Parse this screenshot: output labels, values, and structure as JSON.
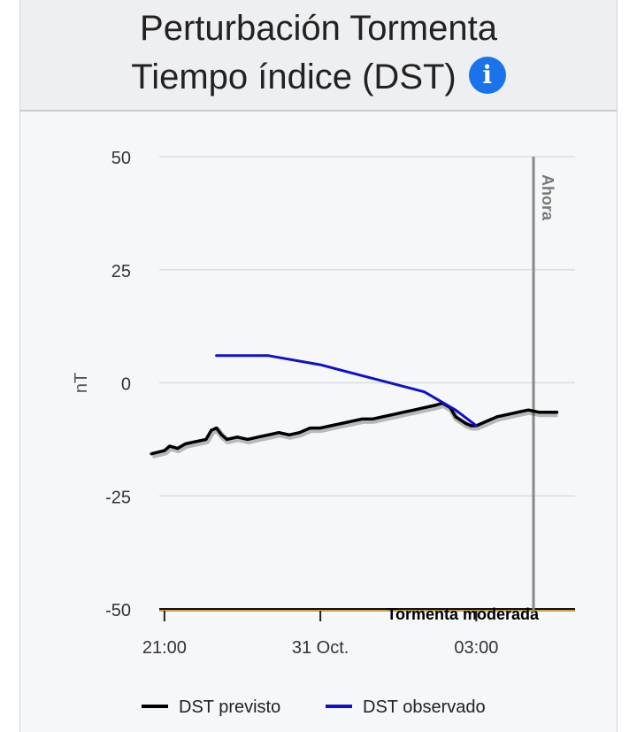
{
  "title": {
    "line1": "Perturbación Tormenta",
    "line2": "Tiempo índice (DST)",
    "info_icon": "info-icon"
  },
  "colors": {
    "forecast": "#000000",
    "observed": "#1010cc",
    "now_line": "#888888",
    "threshold": "#b5891e",
    "info": "#1a73e8"
  },
  "chart_data": {
    "type": "line",
    "title": "Perturbación Tormenta Tiempo índice (DST)",
    "ylabel": "nT",
    "xlabel": "",
    "ylim": [
      -50,
      50
    ],
    "yticks": [
      50,
      25,
      0,
      -25,
      -50
    ],
    "ytick_labels": [
      "50",
      "25",
      "0",
      "-25",
      "-50"
    ],
    "xlim": [
      -0.1,
      7.9
    ],
    "xticks": [
      0,
      3,
      6
    ],
    "xtick_labels": [
      "21:00",
      "31 Oct.",
      "03:00"
    ],
    "now": {
      "x": 7.1,
      "label": "Ahora"
    },
    "threshold": {
      "y": -50,
      "label": "Tormenta moderada"
    },
    "grid": true,
    "legend_position": "bottom",
    "series": [
      {
        "name": "DST previsto",
        "x": [
          -0.25,
          0.0,
          0.1,
          0.25,
          0.4,
          0.6,
          0.8,
          0.9,
          1.0,
          1.1,
          1.2,
          1.4,
          1.6,
          1.8,
          2.0,
          2.2,
          2.4,
          2.6,
          2.8,
          3.0,
          3.2,
          3.4,
          3.6,
          3.8,
          4.0,
          4.2,
          4.4,
          4.6,
          4.8,
          5.0,
          5.2,
          5.35,
          5.5,
          5.6,
          5.8,
          5.9,
          6.0,
          6.2,
          6.4,
          6.6,
          6.8,
          7.0,
          7.2,
          7.4,
          7.55
        ],
        "y": [
          -15.7,
          -15.0,
          -14.0,
          -14.5,
          -13.5,
          -13.0,
          -12.5,
          -10.5,
          -10.0,
          -11.5,
          -12.5,
          -12.0,
          -12.5,
          -12.0,
          -11.5,
          -11.0,
          -11.5,
          -11.0,
          -10.0,
          -10.0,
          -9.5,
          -9.0,
          -8.5,
          -8.0,
          -8.0,
          -7.5,
          -7.0,
          -6.5,
          -6.0,
          -5.5,
          -5.0,
          -4.5,
          -5.5,
          -7.5,
          -9.0,
          -9.5,
          -9.5,
          -8.5,
          -7.5,
          -7.0,
          -6.5,
          -6.0,
          -6.5,
          -6.5,
          -6.5
        ]
      },
      {
        "name": "DST observado",
        "x": [
          1.0,
          2.0,
          3.0,
          4.0,
          5.0,
          5.6,
          6.0
        ],
        "y": [
          6.0,
          6.0,
          4.0,
          1.0,
          -2.0,
          -6.0,
          -9.5
        ]
      }
    ]
  }
}
